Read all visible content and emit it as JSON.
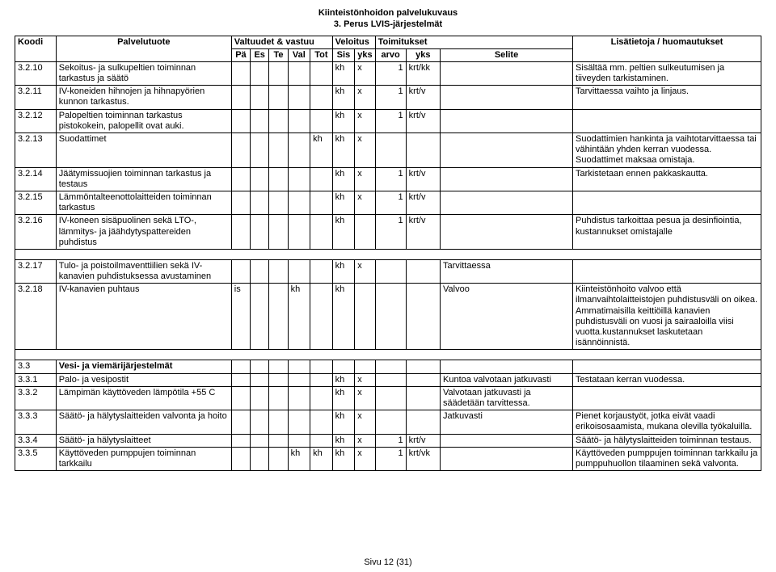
{
  "doc": {
    "title_line1": "Kiinteistönhoidon palvelukuvaus",
    "title_line2": "3. Perus LVIS-järjestelmät",
    "footer": "Sivu 12 (31)"
  },
  "headers": {
    "koodi": "Koodi",
    "palvelutuote": "Palvelutuote",
    "valtuudet": "Valtuudet & vastuu",
    "veloitus": "Veloitus",
    "toimitukset": "Toimitukset",
    "lisatietoja": "Lisätietoja / huomautukset",
    "pa": "Pä",
    "es": "Es",
    "te": "Te",
    "val": "Val",
    "tot": "Tot",
    "sis": "Sis",
    "yks": "yks",
    "arvo": "arvo",
    "yks2": "yks",
    "selite": "Selite"
  },
  "rows": [
    {
      "koodi": "3.2.10",
      "palvelu": "Sekoitus- ja sulkupeltien toiminnan tarkastus ja säätö",
      "tot": "",
      "sis": "kh",
      "yksA": "x",
      "arvo": "1",
      "yksB": "krt/kk",
      "selite": "",
      "lisat": "Sisältää mm. peltien sulkeutumisen ja tiiveyden tarkistaminen."
    },
    {
      "koodi": "3.2.11",
      "palvelu": "IV-koneiden hihnojen ja hihnapyörien kunnon tarkastus.",
      "tot": "",
      "sis": "kh",
      "yksA": "x",
      "arvo": "1",
      "yksB": "krt/v",
      "selite": "",
      "lisat": "Tarvittaessa vaihto ja linjaus."
    },
    {
      "koodi": "3.2.12",
      "palvelu": "Palopeltien toiminnan tarkastus pistokokein, palopellit ovat auki.",
      "tot": "",
      "sis": "kh",
      "yksA": "x",
      "arvo": "1",
      "yksB": "krt/v",
      "selite": "",
      "lisat": ""
    },
    {
      "koodi": "3.2.13",
      "palvelu": "Suodattimet",
      "tot": "kh",
      "sis": "kh",
      "yksA": "x",
      "arvo": "",
      "yksB": "",
      "selite": "",
      "lisat": "Suodattimien hankinta ja vaihtotarvittaessa tai vähintään yhden kerran vuodessa. Suodattimet maksaa omistaja."
    },
    {
      "koodi": "3.2.14",
      "palvelu": "Jäätymissuojien toiminnan tarkastus ja testaus",
      "tot": "",
      "sis": "kh",
      "yksA": "x",
      "arvo": "1",
      "yksB": "krt/v",
      "selite": "",
      "lisat": "Tarkistetaan ennen pakkaskautta."
    },
    {
      "koodi": "3.2.15",
      "palvelu": "Lämmöntalteenottolaitteiden toiminnan tarkastus",
      "tot": "",
      "sis": "kh",
      "yksA": "x",
      "arvo": "1",
      "yksB": "krt/v",
      "selite": "",
      "lisat": ""
    },
    {
      "koodi": "3.2.16",
      "palvelu": "IV-koneen sisäpuolinen sekä LTO-, lämmitys- ja jäähdytyspattereiden puhdistus",
      "tot": "",
      "sis": "kh",
      "yksA": "",
      "arvo": "1",
      "yksB": "krt/v",
      "selite": "",
      "lisat": "Puhdistus tarkoittaa pesua ja desinfiointia, kustannukset omistajalle"
    },
    {
      "spacer": true
    },
    {
      "koodi": "3.2.17",
      "palvelu": "Tulo- ja poistoilmaventtiilien sekä IV-kanavien puhdistuksessa avustaminen",
      "tot": "",
      "sis": "kh",
      "yksA": "x",
      "arvo": "",
      "yksB": "",
      "selite": "Tarvittaessa",
      "lisat": ""
    },
    {
      "koodi": "3.2.18",
      "palvelu": "IV-kanavien puhtaus",
      "pa": "is",
      "val": "kh",
      "tot": "",
      "sis": "kh",
      "yksA": "",
      "arvo": "",
      "yksB": "",
      "selite": "Valvoo",
      "lisat": "Kiinteistönhoito valvoo että ilmanvaihtolaitteistojen puhdistusväli on oikea. Ammatimaisilla keittiöillä kanavien puhdistusväli on vuosi ja sairaaloilla viisi vuotta.kustannukset laskutetaan isännöinnistä."
    },
    {
      "spacer": true
    },
    {
      "koodi": "3.3",
      "palvelu": "Vesi- ja viemärijärjestelmät",
      "section": true
    },
    {
      "koodi": "3.3.1",
      "palvelu": "Palo- ja vesipostit",
      "tot": "",
      "sis": "kh",
      "yksA": "x",
      "arvo": "",
      "yksB": "",
      "selite": "Kuntoa valvotaan jatkuvasti",
      "lisat": "Testataan kerran vuodessa."
    },
    {
      "koodi": "3.3.2",
      "palvelu": "Lämpimän käyttöveden lämpötila +55 C",
      "tot": "",
      "sis": "kh",
      "yksA": "x",
      "arvo": "",
      "yksB": "",
      "selite": "Valvotaan jatkuvasti ja säädetään tarvittessa.",
      "lisat": ""
    },
    {
      "koodi": "3.3.3",
      "palvelu": "Säätö- ja hälytyslaitteiden valvonta ja hoito",
      "tot": "",
      "sis": "kh",
      "yksA": "x",
      "arvo": "",
      "yksB": "",
      "selite": "Jatkuvasti",
      "lisat": "Pienet korjaustyöt, jotka eivät vaadi erikoisosaamista, mukana olevilla työkaluilla."
    },
    {
      "koodi": "3.3.4",
      "palvelu": "Säätö- ja hälytyslaitteet",
      "tot": "",
      "sis": "kh",
      "yksA": "x",
      "arvo": "1",
      "yksB": "krt/v",
      "selite": "",
      "lisat": "Säätö- ja hälytyslaitteiden toiminnan testaus."
    },
    {
      "koodi": "3.3.5",
      "palvelu": "Käyttöveden pumppujen toiminnan tarkkailu",
      "val": "kh",
      "tot": "kh",
      "sis": "kh",
      "yksA": "x",
      "arvo": "1",
      "yksB": "krt/vk",
      "selite": "",
      "lisat": "Käyttöveden pumppujen toiminnan tarkkailu ja pumppuhuollon tilaaminen sekä valvonta."
    }
  ]
}
